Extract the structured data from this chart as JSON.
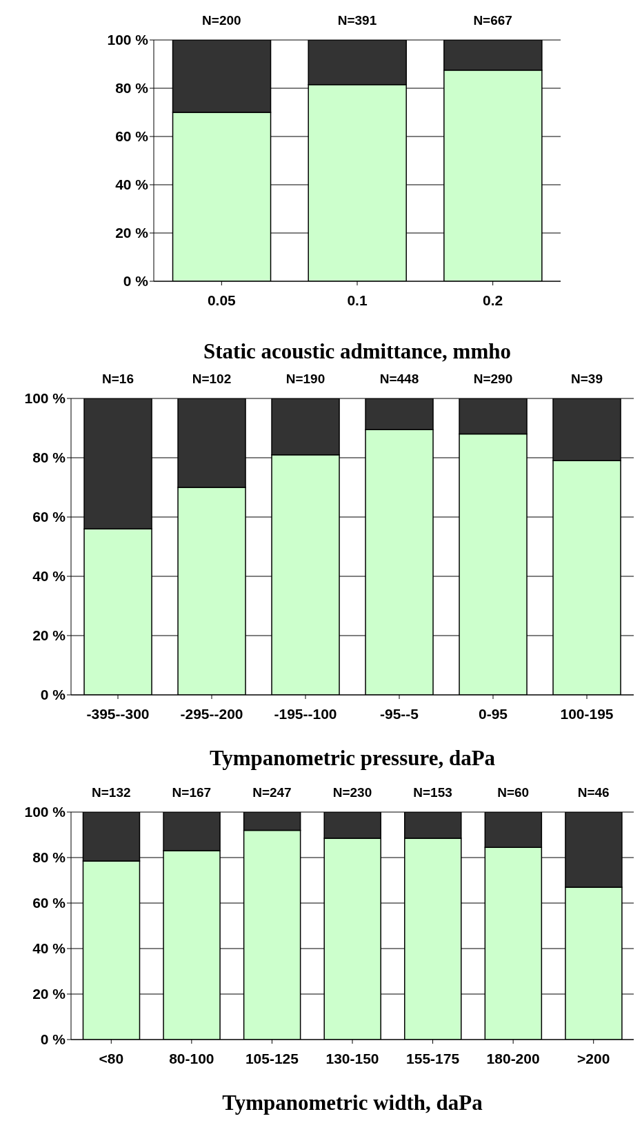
{
  "chart_data": [
    {
      "type": "bar",
      "stacked": true,
      "xlabel": "Static acoustic admittance, mmho",
      "categories": [
        "0.05",
        "0.1",
        "0.2"
      ],
      "series": [
        {
          "color": "#ccffcc",
          "values": [
            70,
            81.5,
            87.5
          ]
        },
        {
          "color": "#333333",
          "values": [
            30,
            18.5,
            12.5
          ]
        }
      ],
      "ylim": [
        0,
        100
      ],
      "yticks": [
        {
          "value": 0,
          "label": "0 %"
        },
        {
          "value": 20,
          "label": "20 %"
        },
        {
          "value": 40,
          "label": "40 %"
        },
        {
          "value": 60,
          "label": "60 %"
        },
        {
          "value": 80,
          "label": "80 %"
        },
        {
          "value": 100,
          "label": "100 %"
        }
      ],
      "grid": "y",
      "legend": false,
      "annotations": [
        {
          "text": "N=200",
          "x": "0.05",
          "y": 100
        },
        {
          "text": "N=391",
          "x": "0.1",
          "y": 100
        },
        {
          "text": "N=667",
          "x": "0.2",
          "y": 100
        }
      ]
    },
    {
      "type": "bar",
      "stacked": true,
      "xlabel": "Tympanometric pressure, daPa",
      "categories": [
        "-395--300",
        "-295--200",
        "-195--100",
        "-95--5",
        "0-95",
        "100-195"
      ],
      "series": [
        {
          "color": "#ccffcc",
          "values": [
            56,
            70,
            81,
            89.5,
            88,
            79
          ]
        },
        {
          "color": "#333333",
          "values": [
            44,
            30,
            19,
            10.5,
            12,
            21
          ]
        }
      ],
      "ylim": [
        0,
        100
      ],
      "yticks": [
        {
          "value": 0,
          "label": "0 %"
        },
        {
          "value": 20,
          "label": "20 %"
        },
        {
          "value": 40,
          "label": "40 %"
        },
        {
          "value": 60,
          "label": "60 %"
        },
        {
          "value": 80,
          "label": "80 %"
        },
        {
          "value": 100,
          "label": "100 %"
        }
      ],
      "grid": "y",
      "legend": false,
      "annotations": [
        {
          "text": "N=16",
          "x": "-395--300",
          "y": 100
        },
        {
          "text": "N=102",
          "x": "-295--200",
          "y": 100
        },
        {
          "text": "N=190",
          "x": "-195--100",
          "y": 100
        },
        {
          "text": "N=448",
          "x": "-95--5",
          "y": 100
        },
        {
          "text": "N=290",
          "x": "0-95",
          "y": 100
        },
        {
          "text": "N=39",
          "x": "100-195",
          "y": 100
        }
      ]
    },
    {
      "type": "bar",
      "stacked": true,
      "xlabel": "Tympanometric width, daPa",
      "categories": [
        "<80",
        "80-100",
        "105-125",
        "130-150",
        "155-175",
        "180-200",
        ">200"
      ],
      "series": [
        {
          "color": "#ccffcc",
          "values": [
            78.5,
            83,
            92,
            88.5,
            88.5,
            84.5,
            67
          ]
        },
        {
          "color": "#333333",
          "values": [
            21.5,
            17,
            8,
            11.5,
            11.5,
            15.5,
            33
          ]
        }
      ],
      "ylim": [
        0,
        100
      ],
      "yticks": [
        {
          "value": 0,
          "label": "0 %"
        },
        {
          "value": 20,
          "label": "20 %"
        },
        {
          "value": 40,
          "label": "40 %"
        },
        {
          "value": 60,
          "label": "60 %"
        },
        {
          "value": 80,
          "label": "80 %"
        },
        {
          "value": 100,
          "label": "100 %"
        }
      ],
      "grid": "y",
      "legend": false,
      "annotations": [
        {
          "text": "N=132",
          "x": "<80",
          "y": 100
        },
        {
          "text": "N=167",
          "x": "80-100",
          "y": 100
        },
        {
          "text": "N=247",
          "x": "105-125",
          "y": 100
        },
        {
          "text": "N=230",
          "x": "130-150",
          "y": 100
        },
        {
          "text": "N=153",
          "x": "155-175",
          "y": 100
        },
        {
          "text": "N=60",
          "x": "180-200",
          "y": 100
        },
        {
          "text": "N=46",
          "x": ">200",
          "y": 100
        }
      ]
    }
  ]
}
